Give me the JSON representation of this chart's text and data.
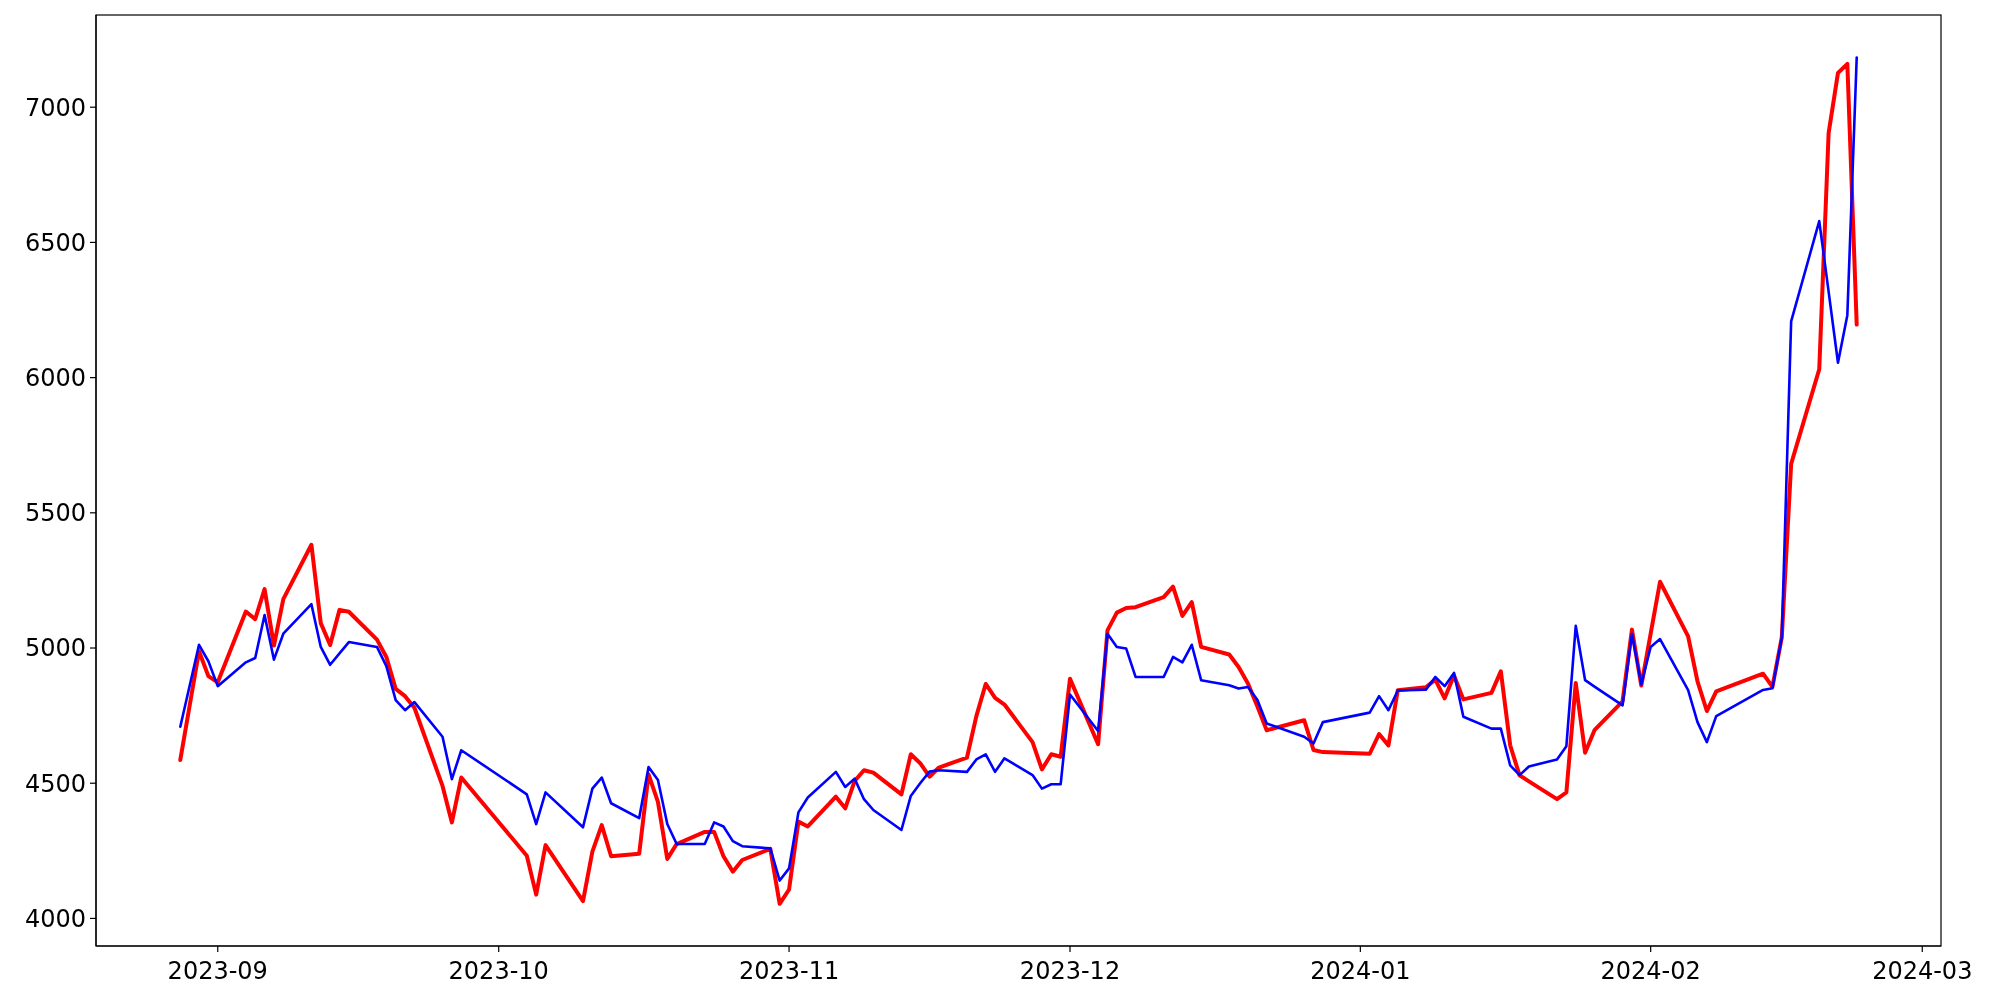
{
  "chart_data": {
    "type": "line",
    "x": [
      "2023-08-28",
      "2023-08-30",
      "2023-08-31",
      "2023-09-01",
      "2023-09-04",
      "2023-09-05",
      "2023-09-06",
      "2023-09-07",
      "2023-09-08",
      "2023-09-11",
      "2023-09-12",
      "2023-09-13",
      "2023-09-14",
      "2023-09-15",
      "2023-09-18",
      "2023-09-19",
      "2023-09-20",
      "2023-09-21",
      "2023-09-22",
      "2023-09-25",
      "2023-09-26",
      "2023-09-27",
      "2023-10-04",
      "2023-10-05",
      "2023-10-06",
      "2023-10-10",
      "2023-10-11",
      "2023-10-12",
      "2023-10-13",
      "2023-10-16",
      "2023-10-17",
      "2023-10-18",
      "2023-10-19",
      "2023-10-20",
      "2023-10-23",
      "2023-10-24",
      "2023-10-25",
      "2023-10-26",
      "2023-10-27",
      "2023-10-30",
      "2023-10-31",
      "2023-11-01",
      "2023-11-02",
      "2023-11-03",
      "2023-11-06",
      "2023-11-07",
      "2023-11-08",
      "2023-11-09",
      "2023-11-10",
      "2023-11-13",
      "2023-11-14",
      "2023-11-15",
      "2023-11-16",
      "2023-11-17",
      "2023-11-20",
      "2023-11-21",
      "2023-11-22",
      "2023-11-23",
      "2023-11-24",
      "2023-11-27",
      "2023-11-28",
      "2023-11-29",
      "2023-11-30",
      "2023-12-01",
      "2023-12-04",
      "2023-12-05",
      "2023-12-06",
      "2023-12-07",
      "2023-12-08",
      "2023-12-11",
      "2023-12-12",
      "2023-12-13",
      "2023-12-14",
      "2023-12-15",
      "2023-12-18",
      "2023-12-19",
      "2023-12-20",
      "2023-12-21",
      "2023-12-22",
      "2023-12-26",
      "2023-12-27",
      "2023-12-28",
      "2024-01-02",
      "2024-01-03",
      "2024-01-04",
      "2024-01-05",
      "2024-01-08",
      "2024-01-09",
      "2024-01-10",
      "2024-01-11",
      "2024-01-12",
      "2024-01-15",
      "2024-01-16",
      "2024-01-17",
      "2024-01-18",
      "2024-01-19",
      "2024-01-22",
      "2024-01-23",
      "2024-01-24",
      "2024-01-25",
      "2024-01-26",
      "2024-01-29",
      "2024-01-30",
      "2024-01-31",
      "2024-02-01",
      "2024-02-02",
      "2024-02-05",
      "2024-02-06",
      "2024-02-07",
      "2024-02-08",
      "2024-02-13",
      "2024-02-14",
      "2024-02-15",
      "2024-02-16",
      "2024-02-19",
      "2024-02-20",
      "2024-02-21",
      "2024-02-22",
      "2024-02-23"
    ],
    "series": [
      {
        "color": "#ff0000",
        "values": [
          4586,
          4988,
          4896,
          4873,
          5135,
          5107,
          5218,
          5009,
          5181,
          5382,
          5092,
          5011,
          5141,
          5134,
          5031,
          4967,
          4849,
          4822,
          4779,
          4490,
          4355,
          4521,
          4232,
          4088,
          4271,
          4064,
          4247,
          4345,
          4230,
          4239,
          4533,
          4431,
          4220,
          4275,
          4320,
          4320,
          4230,
          4173,
          4216,
          4257,
          4054,
          4107,
          4358,
          4340,
          4450,
          4407,
          4508,
          4548,
          4539,
          4459,
          4607,
          4574,
          4524,
          4558,
          4595,
          4748,
          4867,
          4816,
          4791,
          4652,
          4551,
          4607,
          4598,
          4886,
          4644,
          5065,
          5131,
          5148,
          5151,
          5188,
          5227,
          5119,
          5170,
          5004,
          4976,
          4930,
          4869,
          4785,
          4696,
          4733,
          4623,
          4615,
          4609,
          4682,
          4640,
          4844,
          4855,
          4883,
          4814,
          4898,
          4810,
          4834,
          4914,
          4640,
          4529,
          4507,
          4441,
          4466,
          4871,
          4613,
          4696,
          4803,
          5068,
          4861,
          5053,
          5245,
          5043,
          4877,
          4767,
          4840,
          4905,
          4856,
          5039,
          5681,
          6031,
          6904,
          7127,
          7160,
          6196
        ]
      },
      {
        "color": "#0000ff",
        "values": [
          4709,
          5012,
          4951,
          4859,
          4947,
          4963,
          5122,
          4957,
          5053,
          5162,
          5004,
          4938,
          4980,
          5022,
          5004,
          4933,
          4807,
          4770,
          4800,
          4672,
          4515,
          4622,
          4459,
          4349,
          4466,
          4337,
          4480,
          4521,
          4426,
          4371,
          4560,
          4512,
          4349,
          4275,
          4275,
          4355,
          4340,
          4286,
          4267,
          4259,
          4140,
          4185,
          4392,
          4447,
          4542,
          4486,
          4517,
          4441,
          4401,
          4327,
          4453,
          4500,
          4543,
          4548,
          4542,
          4588,
          4607,
          4542,
          4592,
          4530,
          4480,
          4496,
          4496,
          4828,
          4693,
          5053,
          5004,
          4998,
          4893,
          4893,
          4967,
          4947,
          5012,
          4881,
          4862,
          4850,
          4856,
          4809,
          4721,
          4672,
          4647,
          4726,
          4761,
          4822,
          4770,
          4843,
          4846,
          4893,
          4859,
          4908,
          4746,
          4702,
          4702,
          4566,
          4530,
          4562,
          4588,
          4637,
          5082,
          4881,
          4857,
          4788,
          5053,
          4865,
          5004,
          5033,
          4844,
          4726,
          4652,
          4748,
          4845,
          4851,
          5039,
          6208,
          6579,
          6318,
          6055,
          6231,
          7184
        ]
      }
    ],
    "xlim": [
      "2023-08-19",
      "2024-03-03"
    ],
    "xticks": [
      "2023-09",
      "2023-10",
      "2023-11",
      "2023-12",
      "2024-01",
      "2024-02",
      "2024-03"
    ],
    "ylim": [
      3898,
      7341
    ],
    "yticks": [
      4000,
      4500,
      5000,
      5500,
      6000,
      6500,
      7000
    ]
  }
}
